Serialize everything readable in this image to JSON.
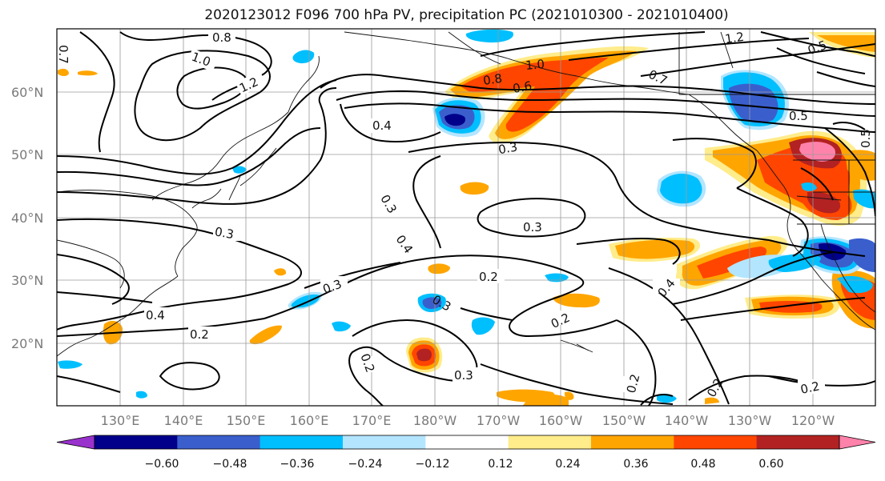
{
  "title": "2020123012 F096 700 hPa PV, precipitation PC (2021010300 - 2021010400)",
  "lat_labels": [
    "60°N",
    "50°N",
    "40°N",
    "30°N",
    "20°N"
  ],
  "lon_labels": [
    "130°E",
    "140°E",
    "150°E",
    "160°E",
    "170°E",
    "180°W",
    "170°W",
    "160°W",
    "150°W",
    "140°W",
    "130°W",
    "120°W"
  ],
  "colorbar": {
    "tick_labels": [
      "−0.60",
      "−0.48",
      "−0.36",
      "−0.24",
      "−0.12",
      "0.12",
      "0.24",
      "0.36",
      "0.48",
      "0.60"
    ],
    "colors": [
      "#9932cc",
      "#00008b",
      "#3a5fcd",
      "#00bfff",
      "#b3e5ff",
      "#ffffff",
      "#ffec8b",
      "#ffa500",
      "#ff4500",
      "#b22222",
      "#ff82ab"
    ]
  },
  "contour_labels": [
    {
      "text": "0.8"
    },
    {
      "text": "1.0"
    },
    {
      "text": "1.2"
    },
    {
      "text": "0.4"
    },
    {
      "text": "0.3"
    },
    {
      "text": "0.3"
    },
    {
      "text": "0.3"
    },
    {
      "text": "0.4"
    },
    {
      "text": "0.2"
    },
    {
      "text": "0.3"
    },
    {
      "text": "0.4"
    },
    {
      "text": "0.2"
    },
    {
      "text": "0.2"
    },
    {
      "text": "0.3"
    },
    {
      "text": "0.2"
    },
    {
      "text": "0.2"
    },
    {
      "text": "0.4"
    },
    {
      "text": "0.2"
    },
    {
      "text": "0.8"
    },
    {
      "text": "0.6"
    },
    {
      "text": "0.3"
    },
    {
      "text": "0.5"
    },
    {
      "text": "1.2"
    },
    {
      "text": "0.7"
    },
    {
      "text": "0.5"
    },
    {
      "text": "0.5"
    },
    {
      "text": "0.7"
    },
    {
      "text": "1.0"
    },
    {
      "text": "0.3"
    },
    {
      "text": "0.2"
    }
  ]
}
